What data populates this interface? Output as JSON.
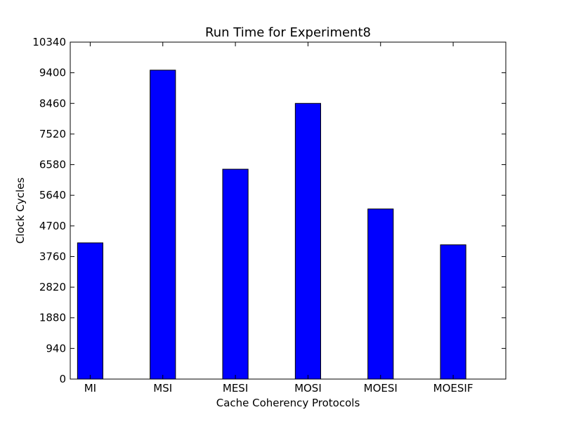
{
  "chart_data": {
    "type": "bar",
    "title": "Run Time for Experiment8",
    "xlabel": "Cache Coherency Protocols",
    "ylabel": "Clock Cycles",
    "categories": [
      "MI",
      "MSI",
      "MESI",
      "MOSI",
      "MOESI",
      "MOESIF"
    ],
    "values": [
      4180,
      9480,
      6440,
      8460,
      5220,
      4120
    ],
    "ylim": [
      0,
      10340
    ],
    "yticks": [
      "0",
      "940",
      "1880",
      "2820",
      "3760",
      "4700",
      "5640",
      "6580",
      "7520",
      "8460",
      "9400",
      "10340"
    ],
    "grid": false,
    "bar_color": "#0000ff",
    "edge_color": "#000000"
  }
}
